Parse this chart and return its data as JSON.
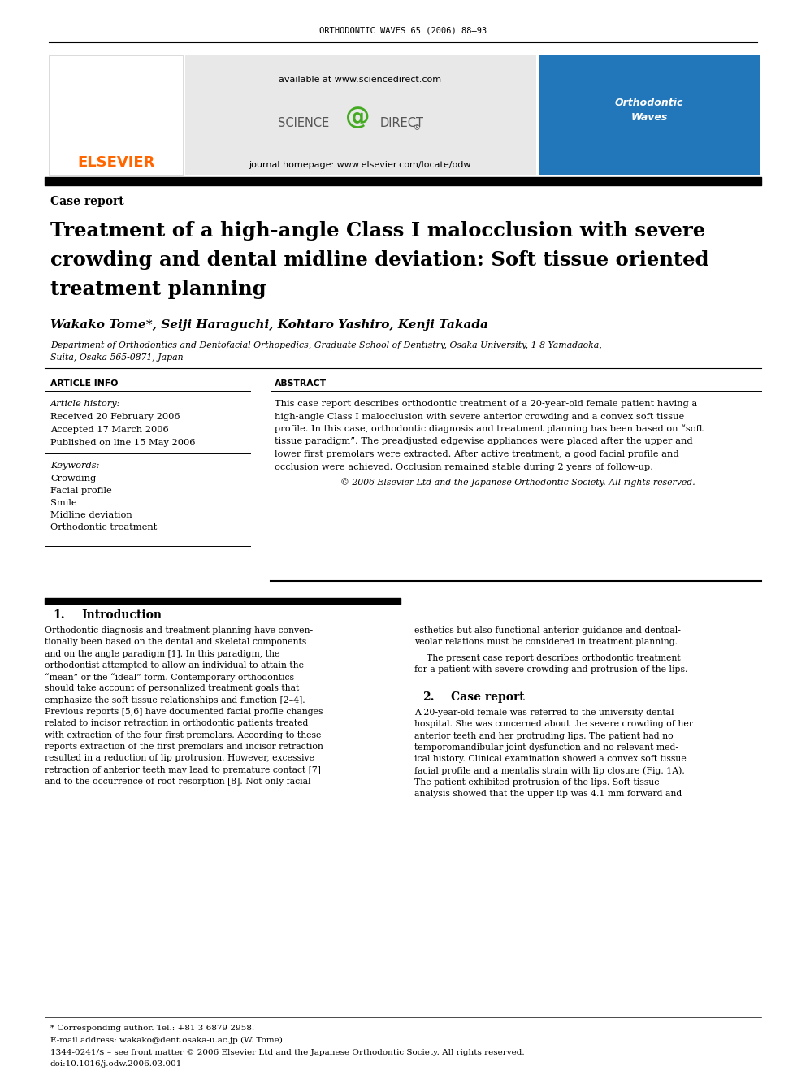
{
  "page_width": 9.92,
  "page_height": 13.23,
  "bg_color": "#ffffff",
  "journal_header": "ORTHODONTIC WAVES 65 (2006) 88–93",
  "elsevier_color": "#FF6600",
  "elsevier_text": "ELSEVIER",
  "available_text": "available at www.sciencedirect.com",
  "journal_homepage_text": "journal homepage: www.elsevier.com/locate/odw",
  "section_label": "Case report",
  "article_title_line1": "Treatment of a high-angle Class I malocclusion with severe",
  "article_title_line2": "crowding and dental midline deviation: Soft tissue oriented",
  "article_title_line3": "treatment planning",
  "authors": "Wakako Tome*, Seiji Haraguchi, Kohtaro Yashiro, Kenji Takada",
  "affiliation_line1": "Department of Orthodontics and Dentofacial Orthopedics, Graduate School of Dentistry, Osaka University, 1-8 Yamadaoka,",
  "affiliation_line2": "Suita, Osaka 565-0871, Japan",
  "article_info_header": "ARTICLE INFO",
  "abstract_header": "ABSTRACT",
  "article_history_label": "Article history:",
  "received": "Received 20 February 2006",
  "accepted": "Accepted 17 March 2006",
  "published": "Published on line 15 May 2006",
  "keywords_label": "Keywords:",
  "keyword1": "Crowding",
  "keyword2": "Facial profile",
  "keyword3": "Smile",
  "keyword4": "Midline deviation",
  "keyword5": "Orthodontic treatment",
  "abstract_lines": [
    "This case report describes orthodontic treatment of a 20-year-old female patient having a",
    "high-angle Class I malocclusion with severe anterior crowding and a convex soft tissue",
    "profile. In this case, orthodontic diagnosis and treatment planning has been based on “soft",
    "tissue paradigm”. The preadjusted edgewise appliances were placed after the upper and",
    "lower first premolars were extracted. After active treatment, a good facial profile and",
    "occlusion were achieved. Occlusion remained stable during 2 years of follow-up."
  ],
  "copyright_text": "© 2006 Elsevier Ltd and the Japanese Orthodontic Society. All rights reserved.",
  "intro_section_num": "1.",
  "intro_section_title": "Introduction",
  "intro_col1_lines": [
    "Orthodontic diagnosis and treatment planning have conven-",
    "tionally been based on the dental and skeletal components",
    "and on the angle paradigm [1]. In this paradigm, the",
    "orthodontist attempted to allow an individual to attain the",
    "“mean” or the “ideal” form. Contemporary orthodontics",
    "should take account of personalized treatment goals that",
    "emphasize the soft tissue relationships and function [2–4].",
    "Previous reports [5,6] have documented facial profile changes",
    "related to incisor retraction in orthodontic patients treated",
    "with extraction of the four first premolars. According to these",
    "reports extraction of the first premolars and incisor retraction",
    "resulted in a reduction of lip protrusion. However, excessive",
    "retraction of anterior teeth may lead to premature contact [7]",
    "and to the occurrence of root resorption [8]. Not only facial"
  ],
  "intro_col2_line1": "esthetics but also functional anterior guidance and dentoal-",
  "intro_col2_line2": "veolar relations must be considered in treatment planning.",
  "intro_col2_line3": "The present case report describes orthodontic treatment",
  "intro_col2_line4": "for a patient with severe crowding and protrusion of the lips.",
  "case_section_num": "2.",
  "case_section_title": "Case report",
  "case_col2_lines": [
    "A 20-year-old female was referred to the university dental",
    "hospital. She was concerned about the severe crowding of her",
    "anterior teeth and her protruding lips. The patient had no",
    "temporomandibular joint dysfunction and no relevant med-",
    "ical history. Clinical examination showed a convex soft tissue",
    "facial profile and a mentalis strain with lip closure (Fig. 1A).",
    "The patient exhibited protrusion of the lips. Soft tissue",
    "analysis showed that the upper lip was 4.1 mm forward and"
  ],
  "footnote_star": "* Corresponding author. Tel.: +81 3 6879 2958.",
  "footnote_email": "E-mail address: wakako@dent.osaka-u.ac.jp (W. Tome).",
  "footnote_issn": "1344-0241/$ – see front matter © 2006 Elsevier Ltd and the Japanese Orthodontic Society. All rights reserved.",
  "footnote_doi": "doi:10.1016/j.odw.2006.03.001"
}
